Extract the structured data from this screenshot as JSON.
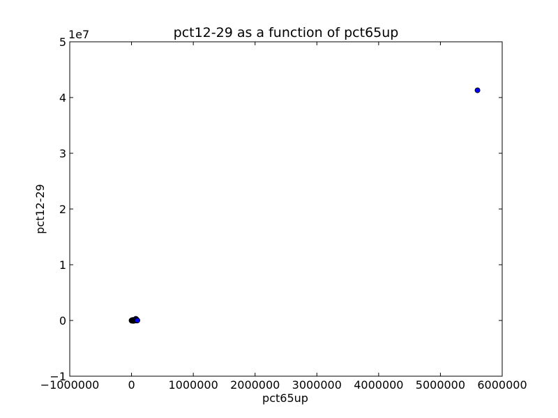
{
  "chart_data": {
    "type": "scatter",
    "title": "pct12-29 as a function of pct65up",
    "xlabel": "pct65up",
    "ylabel": "pct12-29",
    "y_offset_label": "1e7",
    "xlim": [
      -1000000,
      6000000
    ],
    "ylim": [
      -10000000,
      50000000
    ],
    "x_ticks": [
      -1000000,
      0,
      1000000,
      2000000,
      3000000,
      4000000,
      5000000,
      6000000
    ],
    "x_tick_labels": [
      "−1000000",
      "0",
      "1000000",
      "2000000",
      "3000000",
      "4000000",
      "5000000",
      "6000000"
    ],
    "y_ticks": [
      -10000000,
      0,
      10000000,
      20000000,
      30000000,
      40000000,
      50000000
    ],
    "y_tick_labels": [
      "−1",
      "0",
      "1",
      "2",
      "3",
      "4",
      "5"
    ],
    "grid": false,
    "marker_color": "#0000ff",
    "marker_edge": "#000000",
    "points": [
      {
        "x": 5600000,
        "y": 41300000
      },
      {
        "x": 0,
        "y": 0
      },
      {
        "x": 5000,
        "y": -50000
      },
      {
        "x": 10000,
        "y": 50000
      },
      {
        "x": 15000,
        "y": -20000
      },
      {
        "x": 20000,
        "y": 100000
      },
      {
        "x": 25000,
        "y": 0
      },
      {
        "x": 30000,
        "y": -80000
      },
      {
        "x": 35000,
        "y": 60000
      },
      {
        "x": 40000,
        "y": 20000
      },
      {
        "x": 45000,
        "y": -30000
      },
      {
        "x": 50000,
        "y": 40000
      },
      {
        "x": 55000,
        "y": 150000
      },
      {
        "x": 60000,
        "y": -10000
      },
      {
        "x": 65000,
        "y": 90000
      },
      {
        "x": 70000,
        "y": 300000
      },
      {
        "x": 75000,
        "y": 50000
      },
      {
        "x": 80000,
        "y": 200000
      },
      {
        "x": 85000,
        "y": -20000
      },
      {
        "x": 90000,
        "y": 60000
      },
      {
        "x": 95000,
        "y": 10000
      }
    ]
  }
}
